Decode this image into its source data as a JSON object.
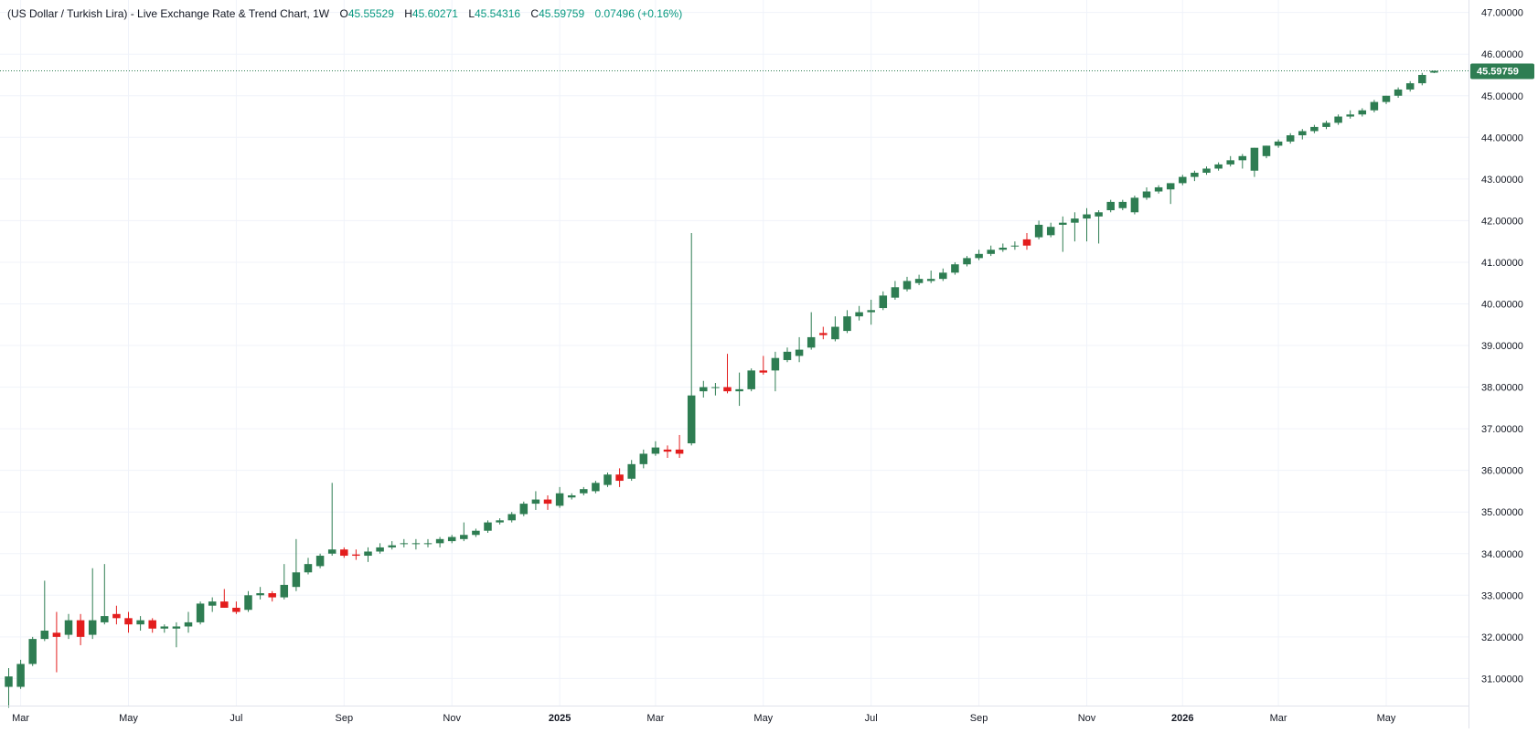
{
  "legend": {
    "title": "(US Dollar / Turkish Lira) - Live Exchange Rate & Trend Chart, 1W",
    "open_prefix": "O",
    "open": "45.55529",
    "high_prefix": "H",
    "high": "45.60271",
    "low_prefix": "L",
    "low": "45.54316",
    "close_prefix": "C",
    "close": "45.59759",
    "change": "0.07496 (+0.16%)"
  },
  "last_price_label": "45.59759",
  "colors": {
    "up": "#2e7d52",
    "down": "#e31d1d",
    "grid": "#f0f3fa",
    "axis_text": "#131722",
    "price_line": "#2e7d52"
  },
  "chart_data": {
    "type": "candlestick",
    "interval": "1W",
    "ylim": [
      30.35,
      47.3
    ],
    "y_ticks": [
      "31.00000",
      "32.00000",
      "33.00000",
      "34.00000",
      "35.00000",
      "36.00000",
      "37.00000",
      "38.00000",
      "39.00000",
      "40.00000",
      "41.00000",
      "42.00000",
      "43.00000",
      "44.00000",
      "45.00000",
      "46.00000",
      "47.00000"
    ],
    "x_ticks": [
      {
        "label": "Mar",
        "index": 1,
        "bold": false
      },
      {
        "label": "May",
        "index": 10,
        "bold": false
      },
      {
        "label": "Jul",
        "index": 19,
        "bold": false
      },
      {
        "label": "Sep",
        "index": 28,
        "bold": false
      },
      {
        "label": "Nov",
        "index": 37,
        "bold": false
      },
      {
        "label": "2025",
        "index": 46,
        "bold": true
      },
      {
        "label": "Mar",
        "index": 54,
        "bold": false
      },
      {
        "label": "May",
        "index": 63,
        "bold": false
      },
      {
        "label": "Jul",
        "index": 72,
        "bold": false
      },
      {
        "label": "Sep",
        "index": 81,
        "bold": false
      },
      {
        "label": "Nov",
        "index": 90,
        "bold": false
      },
      {
        "label": "2026",
        "index": 98,
        "bold": true
      },
      {
        "label": "Mar",
        "index": 106,
        "bold": false
      },
      {
        "label": "May",
        "index": 115,
        "bold": false
      }
    ],
    "candles": [
      [
        30.8,
        31.25,
        30.3,
        31.05
      ],
      [
        30.8,
        31.45,
        30.75,
        31.35
      ],
      [
        31.35,
        32.0,
        31.3,
        31.95
      ],
      [
        31.95,
        33.35,
        31.9,
        32.15
      ],
      [
        32.1,
        32.6,
        31.15,
        32.0
      ],
      [
        32.05,
        32.55,
        31.95,
        32.4
      ],
      [
        32.4,
        32.55,
        31.8,
        32.0
      ],
      [
        32.05,
        33.65,
        31.95,
        32.4
      ],
      [
        32.35,
        33.75,
        32.3,
        32.5
      ],
      [
        32.55,
        32.75,
        32.3,
        32.45
      ],
      [
        32.45,
        32.6,
        32.1,
        32.3
      ],
      [
        32.3,
        32.5,
        32.15,
        32.4
      ],
      [
        32.4,
        32.45,
        32.1,
        32.2
      ],
      [
        32.2,
        32.3,
        32.1,
        32.25
      ],
      [
        32.2,
        32.35,
        31.75,
        32.25
      ],
      [
        32.25,
        32.6,
        32.1,
        32.35
      ],
      [
        32.35,
        32.85,
        32.3,
        32.8
      ],
      [
        32.75,
        32.95,
        32.6,
        32.85
      ],
      [
        32.85,
        33.15,
        32.7,
        32.7
      ],
      [
        32.7,
        32.85,
        32.55,
        32.6
      ],
      [
        32.65,
        33.1,
        32.6,
        33.0
      ],
      [
        33.0,
        33.2,
        32.9,
        33.05
      ],
      [
        33.05,
        33.1,
        32.85,
        32.95
      ],
      [
        32.95,
        33.75,
        32.9,
        33.25
      ],
      [
        33.2,
        34.35,
        33.1,
        33.55
      ],
      [
        33.55,
        33.9,
        33.5,
        33.75
      ],
      [
        33.7,
        34.0,
        33.65,
        33.95
      ],
      [
        34.0,
        35.7,
        33.95,
        34.1
      ],
      [
        34.1,
        34.15,
        33.9,
        33.95
      ],
      [
        33.98,
        34.1,
        33.85,
        33.95
      ],
      [
        33.95,
        34.15,
        33.8,
        34.05
      ],
      [
        34.05,
        34.25,
        34.0,
        34.15
      ],
      [
        34.15,
        34.3,
        34.1,
        34.2
      ],
      [
        34.25,
        34.35,
        34.15,
        34.25
      ],
      [
        34.25,
        34.35,
        34.1,
        34.25
      ],
      [
        34.25,
        34.35,
        34.15,
        34.25
      ],
      [
        34.25,
        34.4,
        34.15,
        34.35
      ],
      [
        34.3,
        34.45,
        34.25,
        34.4
      ],
      [
        34.35,
        34.75,
        34.3,
        34.45
      ],
      [
        34.45,
        34.6,
        34.4,
        34.55
      ],
      [
        34.55,
        34.8,
        34.5,
        34.75
      ],
      [
        34.75,
        34.85,
        34.7,
        34.8
      ],
      [
        34.8,
        35.0,
        34.75,
        34.95
      ],
      [
        34.95,
        35.25,
        34.9,
        35.2
      ],
      [
        35.2,
        35.5,
        35.05,
        35.3
      ],
      [
        35.3,
        35.4,
        35.05,
        35.2
      ],
      [
        35.15,
        35.6,
        35.1,
        35.45
      ],
      [
        35.35,
        35.45,
        35.3,
        35.4
      ],
      [
        35.45,
        35.6,
        35.4,
        35.55
      ],
      [
        35.5,
        35.75,
        35.45,
        35.7
      ],
      [
        35.65,
        35.95,
        35.6,
        35.9
      ],
      [
        35.9,
        36.05,
        35.6,
        35.75
      ],
      [
        35.8,
        36.25,
        35.75,
        36.15
      ],
      [
        36.15,
        36.5,
        36.05,
        36.4
      ],
      [
        36.4,
        36.7,
        36.35,
        36.55
      ],
      [
        36.5,
        36.6,
        36.3,
        36.45
      ],
      [
        36.5,
        36.85,
        36.3,
        36.4
      ],
      [
        36.65,
        41.7,
        36.6,
        37.8
      ],
      [
        37.9,
        38.15,
        37.75,
        38.0
      ],
      [
        38.0,
        38.1,
        37.8,
        38.0
      ],
      [
        38.0,
        38.8,
        37.85,
        37.9
      ],
      [
        37.9,
        38.35,
        37.55,
        37.95
      ],
      [
        37.95,
        38.45,
        37.9,
        38.4
      ],
      [
        38.4,
        38.75,
        38.3,
        38.35
      ],
      [
        38.4,
        38.85,
        37.9,
        38.7
      ],
      [
        38.65,
        38.95,
        38.6,
        38.85
      ],
      [
        38.75,
        39.2,
        38.6,
        38.9
      ],
      [
        38.95,
        39.8,
        38.9,
        39.2
      ],
      [
        39.3,
        39.45,
        39.15,
        39.25
      ],
      [
        39.15,
        39.7,
        39.1,
        39.45
      ],
      [
        39.35,
        39.85,
        39.3,
        39.7
      ],
      [
        39.7,
        39.95,
        39.6,
        39.8
      ],
      [
        39.8,
        40.1,
        39.5,
        39.85
      ],
      [
        39.9,
        40.3,
        39.85,
        40.2
      ],
      [
        40.15,
        40.55,
        40.1,
        40.4
      ],
      [
        40.35,
        40.65,
        40.3,
        40.55
      ],
      [
        40.5,
        40.7,
        40.45,
        40.6
      ],
      [
        40.55,
        40.8,
        40.5,
        40.6
      ],
      [
        40.6,
        40.85,
        40.55,
        40.75
      ],
      [
        40.75,
        41.0,
        40.7,
        40.95
      ],
      [
        40.95,
        41.15,
        40.9,
        41.1
      ],
      [
        41.1,
        41.3,
        41.05,
        41.2
      ],
      [
        41.2,
        41.4,
        41.15,
        41.3
      ],
      [
        41.3,
        41.45,
        41.25,
        41.35
      ],
      [
        41.4,
        41.5,
        41.3,
        41.4
      ],
      [
        41.55,
        41.7,
        41.3,
        41.4
      ],
      [
        41.6,
        42.0,
        41.55,
        41.9
      ],
      [
        41.65,
        41.95,
        41.6,
        41.85
      ],
      [
        41.9,
        42.1,
        41.25,
        41.95
      ],
      [
        41.95,
        42.2,
        41.5,
        42.05
      ],
      [
        42.05,
        42.3,
        41.5,
        42.15
      ],
      [
        42.1,
        42.25,
        41.45,
        42.2
      ],
      [
        42.25,
        42.5,
        42.2,
        42.45
      ],
      [
        42.3,
        42.5,
        42.25,
        42.45
      ],
      [
        42.2,
        42.6,
        42.15,
        42.55
      ],
      [
        42.55,
        42.8,
        42.5,
        42.7
      ],
      [
        42.7,
        42.85,
        42.65,
        42.8
      ],
      [
        42.75,
        42.9,
        42.4,
        42.9
      ],
      [
        42.9,
        43.1,
        42.85,
        43.05
      ],
      [
        43.05,
        43.2,
        42.95,
        43.15
      ],
      [
        43.15,
        43.3,
        43.1,
        43.25
      ],
      [
        43.25,
        43.4,
        43.2,
        43.35
      ],
      [
        43.35,
        43.55,
        43.3,
        43.45
      ],
      [
        43.45,
        43.6,
        43.25,
        43.55
      ],
      [
        43.2,
        43.75,
        43.05,
        43.75
      ],
      [
        43.55,
        43.8,
        43.5,
        43.8
      ],
      [
        43.8,
        43.95,
        43.75,
        43.9
      ],
      [
        43.9,
        44.1,
        43.85,
        44.05
      ],
      [
        44.05,
        44.2,
        43.95,
        44.15
      ],
      [
        44.15,
        44.3,
        44.1,
        44.25
      ],
      [
        44.25,
        44.4,
        44.2,
        44.35
      ],
      [
        44.35,
        44.55,
        44.3,
        44.5
      ],
      [
        44.5,
        44.65,
        44.45,
        44.55
      ],
      [
        44.55,
        44.7,
        44.5,
        44.65
      ],
      [
        44.65,
        44.9,
        44.6,
        44.85
      ],
      [
        44.85,
        45.0,
        44.8,
        45.0
      ],
      [
        45.0,
        45.2,
        44.95,
        45.15
      ],
      [
        45.15,
        45.35,
        45.1,
        45.3
      ],
      [
        45.3,
        45.55,
        45.25,
        45.5
      ],
      [
        45.55529,
        45.60271,
        45.54316,
        45.59759
      ]
    ]
  }
}
